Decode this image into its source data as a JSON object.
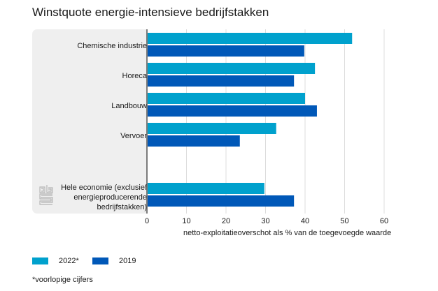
{
  "chart_data": {
    "type": "bar",
    "orientation": "horizontal",
    "title": "Winstquote energie-intensieve bedrijfstakken",
    "xlabel": "netto-exploitatieoverschot als % van de toegevoegde waarde",
    "ylabel": "",
    "xlim": [
      0,
      60
    ],
    "xticks": [
      "0",
      "10",
      "20",
      "30",
      "40",
      "50",
      "60"
    ],
    "grid": true,
    "legend_position": "bottom-left",
    "categories": [
      "Chemische industrie",
      "Horeca",
      "Landbouw",
      "Vervoer",
      "Hele economie (exclusief energieproducerende bedrijfstakken)"
    ],
    "category_lines": [
      [
        "Chemische industrie"
      ],
      [
        "Horeca"
      ],
      [
        "Landbouw"
      ],
      [
        "Vervoer"
      ],
      [
        "Hele economie (exclusief",
        "energieproducerende",
        "bedrijfstakken)"
      ]
    ],
    "series": [
      {
        "name": "2022*",
        "color": "#00a1cd",
        "values": [
          51.9,
          42.5,
          40.0,
          32.7,
          29.7
        ]
      },
      {
        "name": "2019",
        "color": "#0058b8",
        "values": [
          39.8,
          37.2,
          43.0,
          23.5,
          37.2
        ]
      }
    ],
    "footnote": "*voorlopige cijfers"
  },
  "brand": {
    "logo": "cbs-logo-icon"
  }
}
